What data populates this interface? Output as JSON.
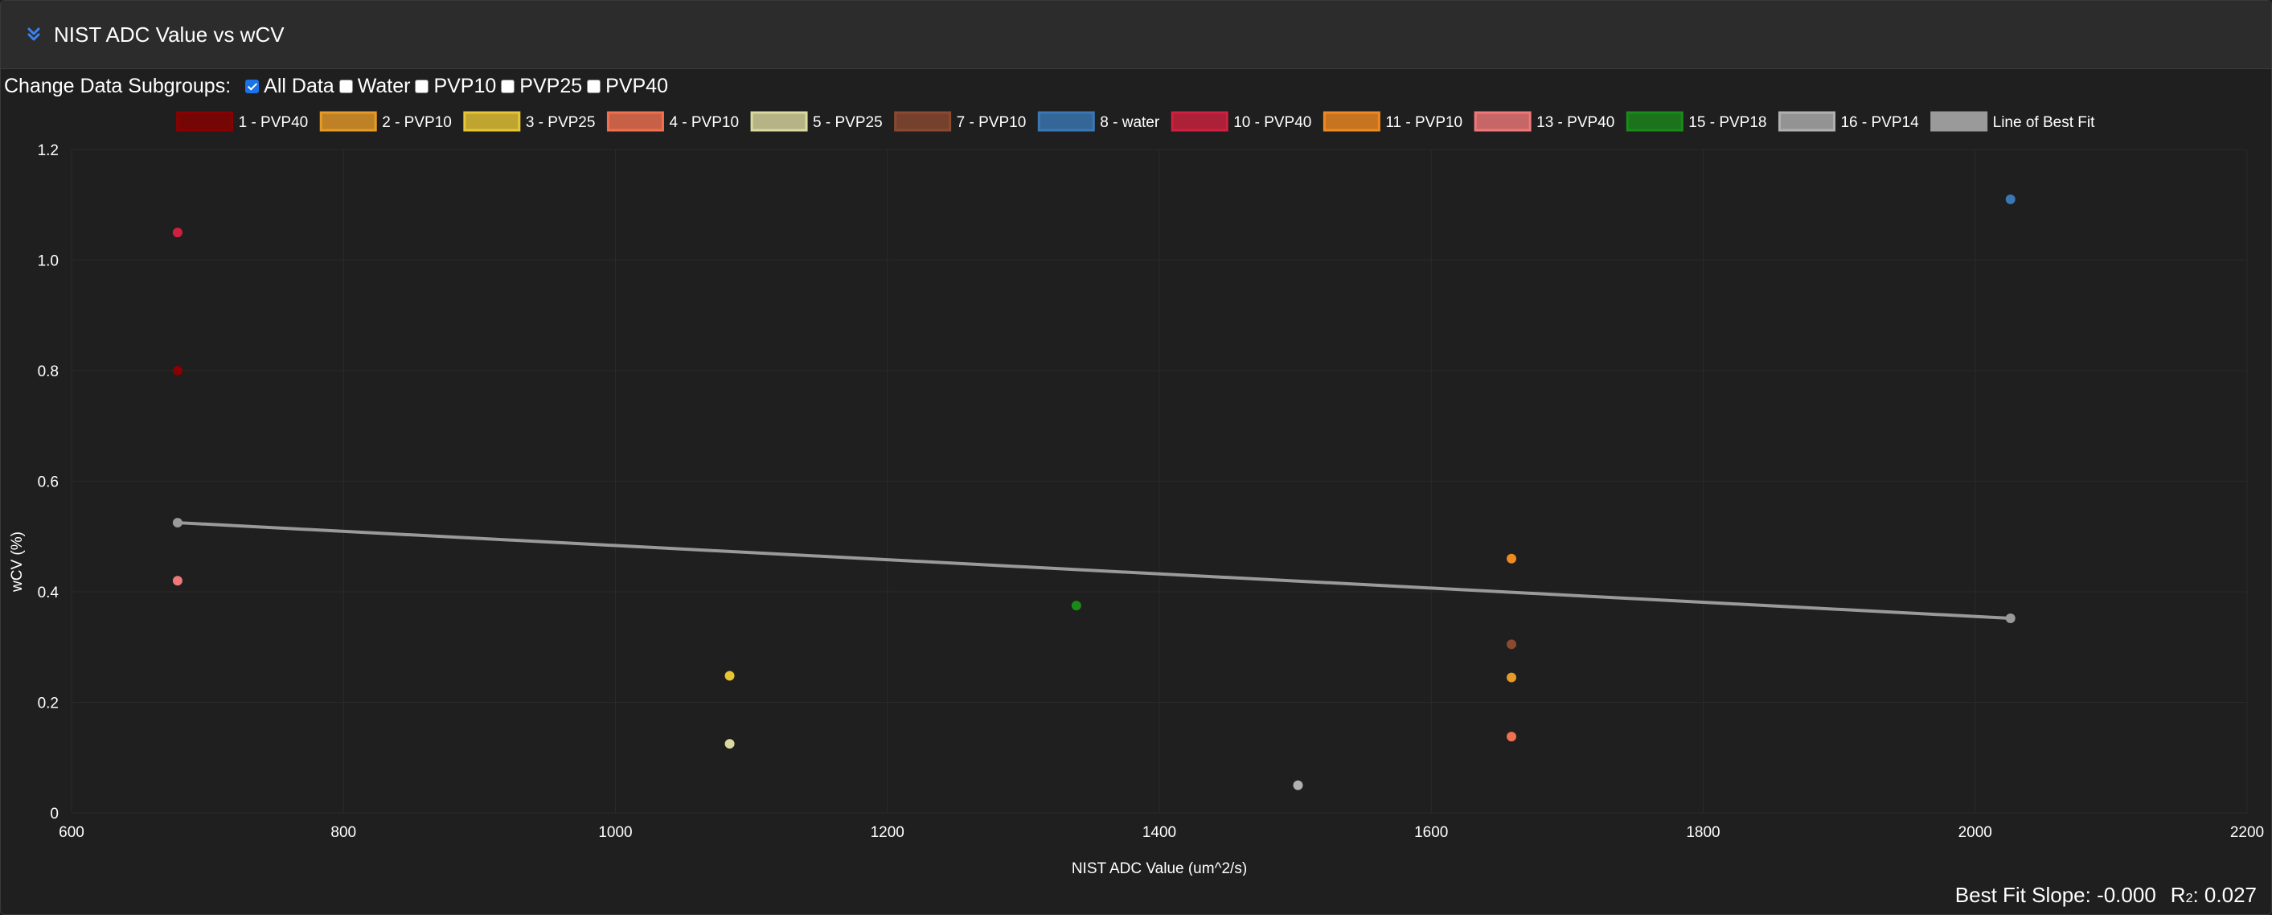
{
  "header": {
    "title": "NIST ADC Value vs wCV",
    "icon": "double-chevron-down-icon",
    "icon_color": "#3b82f6"
  },
  "controls": {
    "label": "Change Data Subgroups:",
    "options": [
      {
        "label": "All Data",
        "checked": true
      },
      {
        "label": "Water",
        "checked": false
      },
      {
        "label": "PVP10",
        "checked": false
      },
      {
        "label": "PVP25",
        "checked": false
      },
      {
        "label": "PVP40",
        "checked": false
      }
    ]
  },
  "footer": {
    "slope_label": "Best Fit Slope: -0.000",
    "r2_prefix": "R",
    "r2_sup": "2",
    "r2_value": ": 0.027"
  },
  "chart_data": {
    "type": "scatter",
    "xlabel": "NIST ADC Value (um^2/s)",
    "ylabel": "wCV (%)",
    "xlim": [
      600,
      2200
    ],
    "ylim": [
      0,
      1.2
    ],
    "xticks": [
      600,
      800,
      1000,
      1200,
      1400,
      1600,
      1800,
      2000,
      2200
    ],
    "yticks": [
      0,
      0.2,
      0.4,
      0.6,
      0.8,
      1.0,
      1.2
    ],
    "ytick_labels": [
      "0",
      "0.2",
      "0.4",
      "0.6",
      "0.8",
      "1.0",
      "1.2"
    ],
    "grid": true,
    "legend_position": "top",
    "series": [
      {
        "name": "1 - PVP40",
        "color": "#8b0000",
        "points": [
          [
            678,
            0.8
          ]
        ]
      },
      {
        "name": "2 - PVP10",
        "color": "#e69a28",
        "points": [
          [
            1659,
            0.245
          ]
        ]
      },
      {
        "name": "3 - PVP25",
        "color": "#e8c534",
        "points": [
          [
            1084,
            0.248
          ]
        ]
      },
      {
        "name": "4 - PVP10",
        "color": "#f07050",
        "points": [
          [
            1659,
            0.138
          ]
        ]
      },
      {
        "name": "5 - PVP25",
        "color": "#d9d9a0",
        "points": [
          [
            1084,
            0.125
          ]
        ]
      },
      {
        "name": "7 - PVP10",
        "color": "#8b4a30",
        "points": [
          [
            1659,
            0.305
          ]
        ]
      },
      {
        "name": "8 - water",
        "color": "#3a78b5",
        "points": [
          [
            2026,
            1.11
          ]
        ]
      },
      {
        "name": "10 - PVP40",
        "color": "#d0203f",
        "points": [
          [
            678,
            1.05
          ]
        ]
      },
      {
        "name": "11 - PVP10",
        "color": "#f08a20",
        "points": [
          [
            1659,
            0.46
          ]
        ]
      },
      {
        "name": "13 - PVP40",
        "color": "#f07878",
        "points": [
          [
            678,
            0.42
          ]
        ]
      },
      {
        "name": "15 - PVP18",
        "color": "#1a8a1a",
        "points": [
          [
            1339,
            0.375
          ]
        ]
      },
      {
        "name": "16 - PVP14",
        "color": "#b0b0b0",
        "points": [
          [
            1502,
            0.05
          ]
        ]
      },
      {
        "name": "Line of Best Fit",
        "color": "#9a9a9a",
        "line": true,
        "points": [
          [
            678,
            0.525
          ],
          [
            2026,
            0.352
          ]
        ]
      }
    ]
  }
}
